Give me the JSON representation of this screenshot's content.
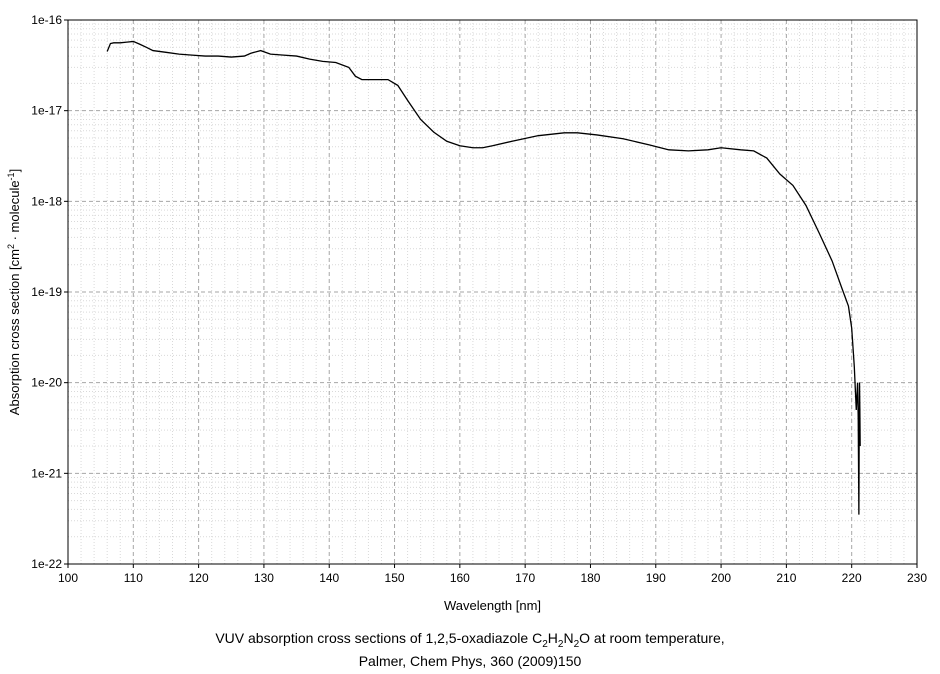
{
  "chart_data": {
    "type": "line",
    "xlabel": "Wavelength [nm]",
    "ylabel": {
      "parts": [
        "Absorption cross section [cm",
        "2",
        " · molecule",
        "-1",
        "]"
      ]
    },
    "xlim": [
      100,
      230
    ],
    "ylim": [
      1e-22,
      1e-16
    ],
    "y_scale": "log",
    "grid": true,
    "x_ticks": [
      100,
      110,
      120,
      130,
      140,
      150,
      160,
      170,
      180,
      190,
      200,
      210,
      220,
      230
    ],
    "y_ticks": [
      {
        "value": 1e-22,
        "label": "1e-22"
      },
      {
        "value": 1e-21,
        "label": "1e-21"
      },
      {
        "value": 1e-20,
        "label": "1e-20"
      },
      {
        "value": 1e-19,
        "label": "1e-19"
      },
      {
        "value": 1e-18,
        "label": "1e-18"
      },
      {
        "value": 1e-17,
        "label": "1e-17"
      },
      {
        "value": 1e-16,
        "label": "1e-16"
      }
    ],
    "series": [
      {
        "color": "#000000",
        "x": [
          106,
          106.5,
          107,
          108,
          109,
          110,
          111,
          112,
          113,
          115,
          117,
          119,
          121,
          123,
          125,
          127,
          128,
          129.5,
          131,
          133,
          135,
          137,
          139,
          141,
          143,
          144,
          145,
          147,
          149,
          150.5,
          152,
          154,
          156,
          158,
          160,
          162,
          163.5,
          165,
          168,
          172,
          176,
          178,
          181,
          185,
          189,
          192,
          195,
          198,
          200,
          203,
          205,
          207,
          209,
          211,
          213,
          215,
          217,
          218.5,
          219.5,
          220,
          220.4,
          220.7,
          220.9,
          221.0,
          221.1,
          221.15,
          221.2,
          221.25,
          221.3
        ],
        "y": [
          4.5e-17,
          5.5e-17,
          5.6e-17,
          5.6e-17,
          5.7e-17,
          5.8e-17,
          5.4e-17,
          5e-17,
          4.6e-17,
          4.4e-17,
          4.2e-17,
          4.1e-17,
          4e-17,
          4e-17,
          3.9e-17,
          4e-17,
          4.3e-17,
          4.6e-17,
          4.2e-17,
          4.1e-17,
          4e-17,
          3.7e-17,
          3.5e-17,
          3.4e-17,
          3e-17,
          2.4e-17,
          2.2e-17,
          2.2e-17,
          2.2e-17,
          1.9e-17,
          1.3e-17,
          8e-18,
          5.8e-18,
          4.6e-18,
          4.1e-18,
          3.9e-18,
          3.9e-18,
          4.1e-18,
          4.6e-18,
          5.3e-18,
          5.7e-18,
          5.7e-18,
          5.4e-18,
          4.9e-18,
          4.2e-18,
          3.7e-18,
          3.6e-18,
          3.7e-18,
          3.9e-18,
          3.7e-18,
          3.6e-18,
          3e-18,
          2e-18,
          1.5e-18,
          9e-19,
          4.5e-19,
          2.2e-19,
          1.1e-19,
          7e-20,
          4e-20,
          1.5e-20,
          5e-21,
          1e-20,
          4e-21,
          3.5e-22,
          3e-21,
          1e-20,
          5e-21,
          2e-21
        ]
      }
    ]
  },
  "caption": {
    "line1": {
      "pre": "VUV absorption cross sections of 1,2,5-oxadiazole C",
      "s1": "2",
      "m1": "H",
      "s2": "2",
      "m2": "N",
      "s3": "2",
      "post": "O at room temperature,"
    },
    "line2": "Palmer, Chem Phys, 360 (2009)150"
  }
}
